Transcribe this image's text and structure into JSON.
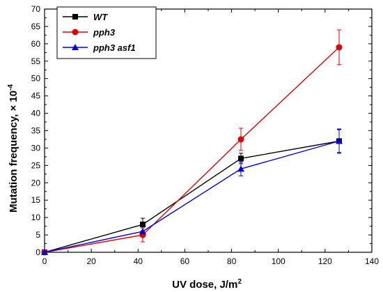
{
  "chart_data": {
    "type": "line",
    "xlabel": "UV dose, J/m",
    "xlabel_sup": "2",
    "ylabel": "Mutation frequency, × 10",
    "ylabel_sup": "-4",
    "xlim": [
      0,
      140
    ],
    "ylim": [
      0,
      70
    ],
    "xticks": [
      0,
      20,
      40,
      60,
      80,
      100,
      120,
      140
    ],
    "yticks": [
      0,
      5,
      10,
      15,
      20,
      25,
      30,
      35,
      40,
      45,
      50,
      55,
      60,
      65,
      70
    ],
    "grid": false,
    "legend_position": "top-left",
    "series": [
      {
        "name": "WT",
        "color": "#000000",
        "marker": "square",
        "x": [
          0,
          42,
          84,
          126
        ],
        "y": [
          0,
          8,
          27,
          32
        ],
        "err": [
          0,
          1.8,
          1.5,
          3.3
        ]
      },
      {
        "name": "pph3",
        "color": "#e00000",
        "marker": "circle",
        "x": [
          0,
          42,
          84,
          126
        ],
        "y": [
          0,
          5,
          32.5,
          59
        ],
        "err": [
          0,
          2,
          3.2,
          5
        ]
      },
      {
        "name": "pph3 asf1",
        "color": "#0000e0",
        "marker": "triangle",
        "x": [
          0,
          42,
          84,
          126
        ],
        "y": [
          0,
          6,
          24,
          32
        ],
        "err": [
          0,
          0,
          2,
          3.5
        ]
      }
    ]
  }
}
